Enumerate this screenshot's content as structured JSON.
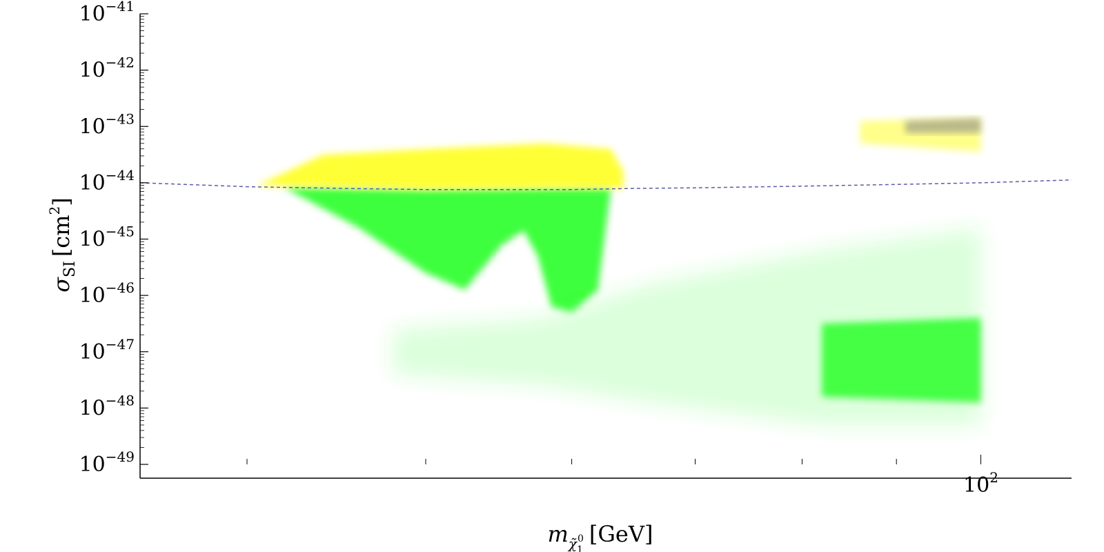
{
  "chart_data": {
    "type": "scatter",
    "title": "",
    "xlabel": "m_{χ̃₁⁰} [GeV]",
    "xlabel_parts": {
      "main": "m",
      "sub": "χ̃",
      "subsub": "1",
      "sup": "0",
      "unit": "[GeV]"
    },
    "ylabel": "σ_SI [cm²]",
    "ylabel_parts": {
      "main": "σ",
      "sub": "SI",
      "unit_open": "[cm",
      "sup": "2",
      "unit_close": "]"
    },
    "x_scale": "log",
    "y_scale": "log",
    "xlim": [
      35,
      112
    ],
    "ylim": [
      1e-49,
      1e-41
    ],
    "x_ticks": [
      40,
      50,
      60,
      70,
      80,
      90,
      100
    ],
    "x_tick_labels": [
      {
        "value": 100,
        "base": "10",
        "exp": "2"
      }
    ],
    "y_ticks": [
      {
        "value": -41,
        "base": "10",
        "exp": "−41"
      },
      {
        "value": -42,
        "base": "10",
        "exp": "−42"
      },
      {
        "value": -43,
        "base": "10",
        "exp": "−43"
      },
      {
        "value": -44,
        "base": "10",
        "exp": "−44"
      },
      {
        "value": -45,
        "base": "10",
        "exp": "−45"
      },
      {
        "value": -46,
        "base": "10",
        "exp": "−46"
      },
      {
        "value": -47,
        "base": "10",
        "exp": "−47"
      },
      {
        "value": -48,
        "base": "10",
        "exp": "−48"
      },
      {
        "value": -49,
        "base": "10",
        "exp": "−49"
      }
    ],
    "grid": false,
    "colors": {
      "allowed": "#3cff3c",
      "excluded": "#ffff2a",
      "heavy_excluded": "#8a8a8a",
      "limit_line": "#5a5aa8"
    },
    "series": [
      {
        "color": "#3cff3c",
        "kind": "region",
        "upper": [
          [
            42,
            -44.08
          ],
          [
            50,
            -44.12
          ],
          [
            58,
            -44.1
          ],
          [
            63,
            -44.1
          ]
        ],
        "lower": [
          [
            42,
            -44.1
          ],
          [
            46,
            -44.8
          ],
          [
            50,
            -45.6
          ],
          [
            52.5,
            -45.9
          ],
          [
            55,
            -45.1
          ],
          [
            56.5,
            -44.85
          ],
          [
            57.5,
            -45.3
          ],
          [
            58.5,
            -46.2
          ],
          [
            60,
            -46.3
          ],
          [
            62,
            -45.9
          ],
          [
            63,
            -44.1
          ]
        ],
        "opacity": 1.0
      },
      {
        "color": "#3cff3c",
        "kind": "region",
        "upper": [
          [
            82,
            -46.5
          ],
          [
            100,
            -46.4
          ]
        ],
        "lower": [
          [
            82,
            -47.8
          ],
          [
            100,
            -47.9
          ]
        ],
        "opacity": 0.95
      },
      {
        "color": "#3cff3c",
        "kind": "diffuse",
        "upper": [
          [
            48,
            -46.6
          ],
          [
            58,
            -46.4
          ],
          [
            66,
            -45.8
          ],
          [
            82,
            -45.2
          ],
          [
            100,
            -44.8
          ]
        ],
        "lower": [
          [
            48,
            -47.4
          ],
          [
            58,
            -47.6
          ],
          [
            66,
            -47.9
          ],
          [
            82,
            -48.3
          ],
          [
            100,
            -48.3
          ]
        ],
        "opacity": 0.18
      },
      {
        "color": "#ffff2a",
        "kind": "region",
        "upper": [
          [
            40.5,
            -44.05
          ],
          [
            44,
            -43.5
          ],
          [
            50,
            -43.4
          ],
          [
            58,
            -43.3
          ],
          [
            63,
            -43.4
          ],
          [
            64,
            -43.8
          ]
        ],
        "lower": [
          [
            40.5,
            -44.05
          ],
          [
            50,
            -44.12
          ],
          [
            58,
            -44.1
          ],
          [
            64,
            -44.1
          ]
        ],
        "opacity": 0.95
      },
      {
        "color": "#ffff2a",
        "kind": "region",
        "upper": [
          [
            86,
            -42.9
          ],
          [
            100,
            -42.85
          ]
        ],
        "lower": [
          [
            86,
            -43.3
          ],
          [
            100,
            -43.45
          ]
        ],
        "opacity": 0.55
      },
      {
        "color": "#8a8a8a",
        "kind": "region",
        "upper": [
          [
            91,
            -42.9
          ],
          [
            100,
            -42.85
          ]
        ],
        "lower": [
          [
            91,
            -43.12
          ],
          [
            100,
            -43.12
          ]
        ],
        "opacity": 0.6
      },
      {
        "kind": "line",
        "style": "dashed",
        "color": "#5a5aa8",
        "x": [
          35,
          40,
          45,
          50,
          55,
          60,
          65,
          70,
          80,
          90,
          100,
          112
        ],
        "y": [
          -44.0,
          -44.07,
          -44.1,
          -44.12,
          -44.12,
          -44.12,
          -44.1,
          -44.09,
          -44.06,
          -44.03,
          -44.0,
          -43.95
        ]
      }
    ]
  }
}
